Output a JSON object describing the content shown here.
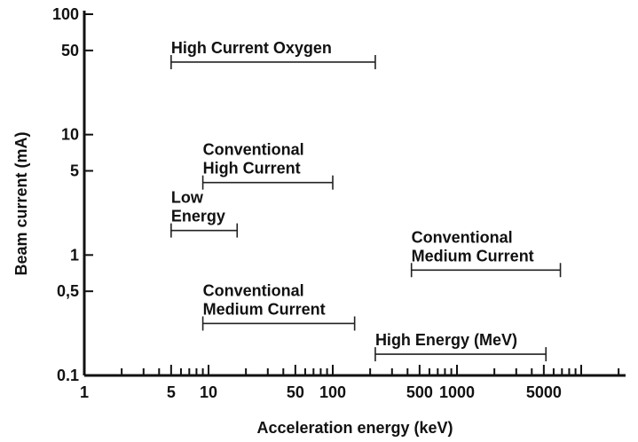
{
  "chart_data": {
    "type": "range",
    "xlabel": "Acceleration energy (keV)",
    "ylabel": "Beam current (mA)",
    "xscale": "log",
    "yscale": "log",
    "xlim": [
      1,
      10000
    ],
    "ylim": [
      0.1,
      100
    ],
    "x_tick_labels": [
      {
        "value": 1,
        "label": "1"
      },
      {
        "value": 5,
        "label": "5"
      },
      {
        "value": 10,
        "label": "10"
      },
      {
        "value": 50,
        "label": "50"
      },
      {
        "value": 100,
        "label": "100"
      },
      {
        "value": 500,
        "label": "500"
      },
      {
        "value": 1000,
        "label": "1000"
      },
      {
        "value": 5000,
        "label": "5000"
      }
    ],
    "y_tick_labels": [
      {
        "value": 100,
        "label": "100"
      },
      {
        "value": 50,
        "label": "50"
      },
      {
        "value": 10,
        "label": "10"
      },
      {
        "value": 5,
        "label": "5"
      },
      {
        "value": 1,
        "label": "1"
      },
      {
        "value": 0.5,
        "label": "0,5"
      },
      {
        "value": 0.1,
        "label": "0.1"
      }
    ],
    "series": [
      {
        "label": [
          "High Current Oxygen"
        ],
        "x_range": [
          5,
          220
        ],
        "y": 40
      },
      {
        "label": [
          "Conventional",
          "High Current"
        ],
        "x_range": [
          9,
          100
        ],
        "y": 4
      },
      {
        "label": [
          "Low",
          "Energy"
        ],
        "x_range": [
          5,
          17
        ],
        "y": 1.6
      },
      {
        "label": [
          "Conventional",
          "Medium Current"
        ],
        "x_range": [
          430,
          6800
        ],
        "y": 0.75
      },
      {
        "label": [
          "Conventional",
          "Medium Current"
        ],
        "x_range": [
          9,
          150
        ],
        "y": 0.27
      },
      {
        "label": [
          "High Energy (MeV)"
        ],
        "x_range": [
          220,
          5200
        ],
        "y": 0.15
      }
    ]
  }
}
